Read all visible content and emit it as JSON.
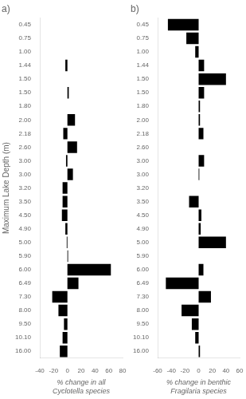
{
  "chart_data": [
    {
      "type": "bar",
      "orientation": "horizontal",
      "title": "a)",
      "xlabel": "% change in all\nCyclotella species",
      "ylabel": "Maximum Lake Depth (m)",
      "categories": [
        "0.45",
        "0.75",
        "1.00",
        "1.44",
        "1.50",
        "1.50",
        "1.80",
        "2.00",
        "2.18",
        "2.60",
        "3.00",
        "3.00",
        "3.20",
        "3.50",
        "4.50",
        "4.90",
        "5.00",
        "5.90",
        "6.00",
        "6.49",
        "7.30",
        "8.00",
        "9.50",
        "10.10",
        "16.00"
      ],
      "values": [
        0,
        0,
        0,
        -3,
        0,
        2,
        0,
        11,
        -6,
        14,
        -2,
        8,
        -7,
        -7,
        -8,
        -3,
        -1,
        1,
        63,
        16,
        -22,
        -13,
        -5,
        -7,
        -11
      ],
      "color": "#000000",
      "xlim": [
        -40,
        80
      ],
      "xticks": [
        -40,
        -20,
        0,
        20,
        40,
        60,
        80
      ],
      "grid": false
    },
    {
      "type": "bar",
      "orientation": "horizontal",
      "title": "b)",
      "xlabel": "% change in benthic\nFragilaria species",
      "categories": [
        "0.45",
        "0.75",
        "1.00",
        "1.44",
        "1.50",
        "1.50",
        "1.80",
        "2.00",
        "2.18",
        "2.60",
        "3.00",
        "3.00",
        "3.20",
        "3.50",
        "4.50",
        "4.90",
        "5.00",
        "5.90",
        "6.00",
        "6.49",
        "7.30",
        "8.00",
        "9.50",
        "10.10",
        "16.00"
      ],
      "values": [
        -45,
        -18,
        -5,
        8,
        40,
        8,
        2,
        2,
        7,
        0,
        8,
        1,
        0,
        -14,
        4,
        3,
        40,
        0,
        7,
        -48,
        18,
        -25,
        -10,
        -5,
        2
      ],
      "color": "#000000",
      "xlim": [
        -60,
        60
      ],
      "xticks": [
        -60,
        -40,
        -20,
        0,
        20,
        40,
        60
      ],
      "grid": false
    }
  ]
}
